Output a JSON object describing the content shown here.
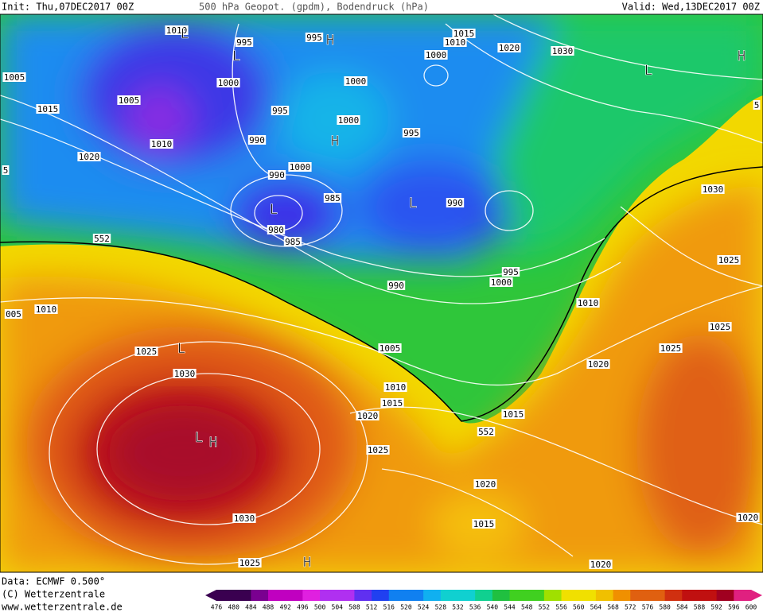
{
  "header": {
    "init": "Init: Thu,07DEC2017 00Z",
    "title": "500 hPa Geopot. (gpdm), Bodendruck (hPa)",
    "valid": "Valid: Wed,13DEC2017 00Z"
  },
  "footer": {
    "data": "Data: ECMWF   0.500°",
    "copyright": "(C) Wetterzentrale",
    "url": "www.wetterzentrale.de"
  },
  "colorbar": {
    "labels": [
      476,
      480,
      484,
      488,
      492,
      496,
      500,
      504,
      508,
      512,
      516,
      520,
      524,
      528,
      532,
      536,
      540,
      544,
      548,
      552,
      556,
      560,
      564,
      568,
      572,
      576,
      580,
      584,
      588,
      592,
      596,
      600
    ]
  },
  "map_labels": [
    "1010",
    "995",
    "995",
    "H",
    "L",
    "L",
    "1000",
    "1005",
    "1005",
    "1015",
    "1010",
    "1020",
    "995",
    "990",
    "990",
    "1000",
    "H",
    "1000",
    "1000",
    "1015",
    "1010",
    "1000",
    "1020",
    "1030",
    "L",
    "H",
    "995",
    "985",
    "L",
    "980",
    "985",
    "L",
    "990",
    "1030",
    "552",
    "1025",
    "995",
    "1000",
    "990",
    "1010",
    "005",
    "1010",
    "1025",
    "1025",
    "L",
    "1025",
    "1005",
    "1020",
    "1030",
    "1010",
    "1015",
    "1020",
    "1015",
    "552",
    "L",
    "H",
    "1025",
    "1020",
    "1015",
    "1030",
    "1020",
    "1025",
    "H",
    "1020",
    "5",
    "5"
  ]
}
